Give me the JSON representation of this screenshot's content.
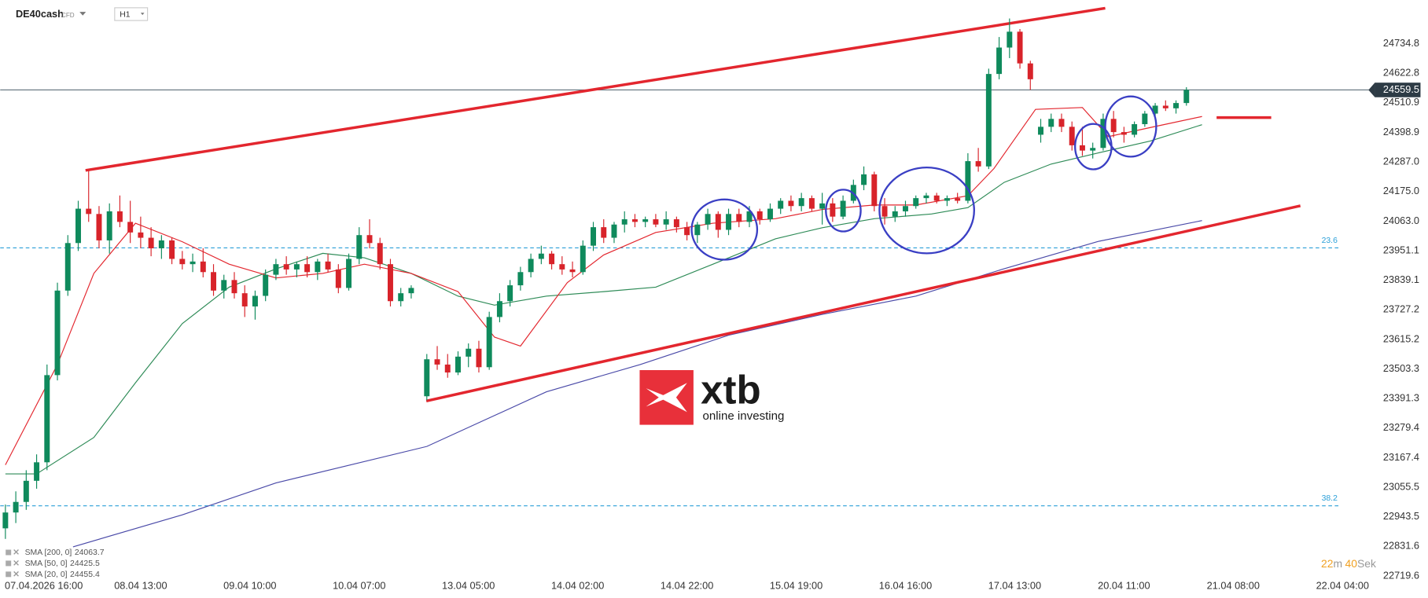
{
  "header": {
    "symbol": "DE40cash",
    "kind": "CFD",
    "timeframe": "H1"
  },
  "logo": {
    "name": "xtb",
    "tagline": "online investing"
  },
  "timer": {
    "minutes": 22,
    "minutes_unit": "m",
    "seconds": 40,
    "seconds_unit": "Sek"
  },
  "chart_data": {
    "type": "candlestick",
    "up_color": "#0f8a5c",
    "down_color": "#d8232a",
    "xlim": [
      -8,
      255
    ],
    "ylim": [
      22657,
      24900
    ],
    "xticks": [
      {
        "value": -2,
        "label": "07.04.2026 16:00"
      },
      {
        "value": 19,
        "label": "08.04 13:00"
      },
      {
        "value": 40,
        "label": "09.04 10:00"
      },
      {
        "value": 61,
        "label": "10.04 07:00"
      },
      {
        "value": 82,
        "label": "13.04 05:00"
      },
      {
        "value": 103,
        "label": "14.04 02:00"
      },
      {
        "value": 124,
        "label": "14.04 22:00"
      },
      {
        "value": 145,
        "label": "15.04 19:00"
      },
      {
        "value": 166,
        "label": "16.04 16:00"
      },
      {
        "value": 187,
        "label": "17.04 13:00"
      },
      {
        "value": 208,
        "label": "20.04 11:00"
      },
      {
        "value": 229,
        "label": "21.04 08:00"
      },
      {
        "value": 250,
        "label": "22.04 04:00"
      }
    ],
    "yticks": [
      24734.8,
      24622.8,
      24510.9,
      24398.9,
      {
        "value": 24287,
        "label": "24287.0"
      },
      {
        "value": 24175,
        "label": "24175.0"
      },
      {
        "value": 24063,
        "label": "24063.0"
      },
      23951.1,
      23839.1,
      23727.2,
      23615.2,
      23503.3,
      23391.3,
      23279.4,
      23167.4,
      23055.5,
      22943.5,
      22831.6,
      22719.6
    ],
    "last_price": 24559.5,
    "levels": [
      {
        "value": 23961.8,
        "label": "23.6"
      },
      {
        "value": 22985.3,
        "label": "38.2"
      }
    ],
    "level_color": "#2a9fd8",
    "trendline_color": "#e3262e",
    "trendlines": [
      {
        "x": [
          8.4,
          204.4
        ],
        "y": [
          24255,
          24869
        ]
      },
      {
        "x": [
          73.9,
          241.9
        ],
        "y": [
          23382,
          24121
        ]
      },
      {
        "x": [
          225.8,
          236.3
        ],
        "y": [
          24455,
          24455
        ]
      }
    ],
    "highlight_color": "#3a3fc4",
    "highlights": [
      {
        "x": [
          124.9,
          137.5
        ],
        "y": [
          23917,
          24145
        ]
      },
      {
        "x": [
          150.7,
          157.4
        ],
        "y": [
          24024,
          24182
        ]
      },
      {
        "x": [
          161,
          179.2
        ],
        "y": [
          23941,
          24266
        ]
      },
      {
        "x": [
          198.6,
          205.6
        ],
        "y": [
          24259,
          24431
        ]
      },
      {
        "x": [
          204.4,
          214.2
        ],
        "y": [
          24307,
          24535
        ]
      }
    ],
    "indicators": [
      {
        "name": "SMA [200, 0]",
        "value": 24063.7,
        "color": "#4a4aa8",
        "x": [
          6,
          27,
          45,
          74,
          97,
          115,
          132,
          150,
          168,
          185,
          203,
          223
        ],
        "values": [
          22830,
          22951,
          23072,
          23210,
          23417,
          23520,
          23631,
          23710,
          23779,
          23883,
          23986,
          24065
        ]
      },
      {
        "name": "SMA [50, 0]",
        "value": 24425.5,
        "color": "#2e8b57",
        "x": [
          -7,
          -1,
          10,
          18,
          27,
          36,
          45,
          54,
          62,
          71,
          80,
          87,
          97,
          108,
          118,
          129,
          141,
          150,
          160,
          171,
          178,
          185,
          194,
          203,
          213,
          223
        ],
        "values": [
          23106,
          23106,
          23244,
          23451,
          23675,
          23813,
          23882,
          23941,
          23924,
          23865,
          23779,
          23745,
          23779,
          23796,
          23813,
          23900,
          23996,
          24038,
          24072,
          24090,
          24114,
          24210,
          24279,
          24321,
          24366,
          24428
        ]
      },
      {
        "name": "SMA [20, 0]",
        "value": 24455.4,
        "color": "#e3262e",
        "x": [
          -7,
          3,
          10,
          18,
          27,
          36,
          45,
          54,
          62,
          71,
          80,
          87,
          92,
          101,
          108,
          118,
          129,
          141,
          150,
          160,
          168,
          178,
          183,
          191,
          200,
          205,
          213,
          223
        ],
        "values": [
          23140,
          23520,
          23865,
          24055,
          23985,
          23900,
          23848,
          23865,
          23900,
          23865,
          23796,
          23624,
          23590,
          23830,
          23935,
          24020,
          24055,
          24072,
          24107,
          24124,
          24124,
          24159,
          24262,
          24486,
          24493,
          24383,
          24417,
          24459
        ]
      }
    ],
    "x": [
      -7,
      -5,
      -3,
      -1,
      1,
      3,
      5,
      7,
      9,
      11,
      13,
      15,
      17,
      19,
      21,
      23,
      25,
      27,
      29,
      31,
      33,
      35,
      37,
      39,
      41,
      43,
      45,
      47,
      49,
      51,
      53,
      55,
      57,
      59,
      61,
      63,
      65,
      67,
      69,
      71,
      74,
      76,
      78,
      80,
      82,
      84,
      86,
      88,
      90,
      92,
      94,
      96,
      98,
      100,
      102,
      104,
      106,
      108,
      110,
      112,
      114,
      116,
      118,
      120,
      122,
      124,
      126,
      128,
      130,
      132,
      134,
      136,
      138,
      140,
      142,
      144,
      146,
      148,
      150,
      152,
      154,
      156,
      158,
      160,
      162,
      164,
      166,
      168,
      170,
      172,
      174,
      176,
      178,
      180,
      182,
      184,
      186,
      188,
      190,
      192,
      194,
      196,
      198,
      200,
      202,
      204,
      206,
      208,
      210,
      212,
      214,
      216,
      218,
      220
    ],
    "open": [
      22900,
      22960,
      23000,
      23080,
      23150,
      23480,
      23800,
      23980,
      24110,
      24090,
      23990,
      24100,
      24060,
      24020,
      24000,
      23960,
      23990,
      23920,
      23900,
      23910,
      23870,
      23800,
      23840,
      23790,
      23740,
      23780,
      23860,
      23900,
      23880,
      23900,
      23870,
      23910,
      23880,
      23810,
      23920,
      24010,
      23980,
      23900,
      23760,
      23790,
      23400,
      23540,
      23520,
      23490,
      23550,
      23580,
      23510,
      23700,
      23760,
      23820,
      23870,
      23920,
      23940,
      23900,
      23880,
      23870,
      23970,
      24040,
      24000,
      24050,
      24070,
      24060,
      24070,
      24050,
      24070,
      24040,
      24010,
      24050,
      24090,
      24030,
      24090,
      24060,
      24100,
      24070,
      24110,
      24140,
      24120,
      24150,
      24110,
      24130,
      24080,
      24140,
      24200,
      24240,
      24120,
      24080,
      24100,
      24120,
      24150,
      24160,
      24140,
      24150,
      24140,
      24290,
      24270,
      24620,
      24720,
      24780,
      24660,
      24390,
      24420,
      24450,
      24420,
      24350,
      24330,
      24340,
      24450,
      24400,
      24390,
      24430,
      24470,
      24500,
      24490,
      24510
    ],
    "high": [
      22990,
      23040,
      23120,
      23180,
      23520,
      23830,
      24010,
      24140,
      24255,
      24120,
      24130,
      24160,
      24140,
      24080,
      24040,
      24010,
      24000,
      23950,
      23940,
      23960,
      23900,
      23860,
      23870,
      23820,
      23800,
      23880,
      23920,
      23930,
      23910,
      23930,
      23920,
      23940,
      23900,
      23940,
      24040,
      24070,
      24000,
      23920,
      23810,
      23820,
      23560,
      23590,
      23560,
      23570,
      23600,
      23610,
      23720,
      23790,
      23840,
      23890,
      23940,
      23970,
      23950,
      23930,
      23910,
      23990,
      24060,
      24070,
      24060,
      24100,
      24090,
      24080,
      24090,
      24100,
      24080,
      24060,
      24060,
      24110,
      24100,
      24110,
      24110,
      24120,
      24110,
      24130,
      24150,
      24160,
      24170,
      24160,
      24170,
      24150,
      24160,
      24220,
      24270,
      24250,
      24150,
      24120,
      24140,
      24160,
      24170,
      24170,
      24160,
      24170,
      24320,
      24340,
      24640,
      24760,
      24830,
      24790,
      24670,
      24450,
      24470,
      24470,
      24440,
      24420,
      24360,
      24470,
      24480,
      24420,
      24440,
      24480,
      24510,
      24520,
      24520,
      24570
    ],
    "low": [
      22860,
      22920,
      22970,
      23050,
      23120,
      23460,
      23780,
      23950,
      24060,
      23960,
      23940,
      24040,
      23980,
      23960,
      23930,
      23920,
      23900,
      23880,
      23870,
      23850,
      23780,
      23770,
      23770,
      23700,
      23690,
      23760,
      23840,
      23860,
      23850,
      23850,
      23840,
      23870,
      23790,
      23800,
      23900,
      23960,
      23880,
      23740,
      23740,
      23770,
      23385,
      23500,
      23470,
      23480,
      23510,
      23490,
      23500,
      23680,
      23740,
      23800,
      23850,
      23900,
      23880,
      23860,
      23850,
      23860,
      23950,
      23980,
      23980,
      24020,
      24040,
      24040,
      24040,
      24030,
      24020,
      23990,
      23980,
      24030,
      24000,
      24010,
      24040,
      24040,
      24050,
      24060,
      24090,
      24100,
      24100,
      24100,
      24050,
      24060,
      24070,
      24130,
      24180,
      24100,
      24050,
      24060,
      24080,
      24110,
      24130,
      24130,
      24120,
      24130,
      24130,
      24250,
      24260,
      24600,
      24680,
      24640,
      24560,
      24360,
      24400,
      24400,
      24330,
      24310,
      24300,
      24330,
      24380,
      24360,
      24380,
      24420,
      24460,
      24480,
      24470,
      24500
    ],
    "close": [
      22960,
      23000,
      23080,
      23150,
      23480,
      23800,
      23980,
      24110,
      24090,
      23990,
      24100,
      24060,
      24020,
      24000,
      23960,
      23990,
      23920,
      23900,
      23910,
      23870,
      23800,
      23840,
      23790,
      23740,
      23780,
      23860,
      23900,
      23880,
      23900,
      23870,
      23910,
      23880,
      23810,
      23920,
      24010,
      23980,
      23900,
      23760,
      23790,
      23810,
      23540,
      23520,
      23490,
      23550,
      23580,
      23510,
      23700,
      23760,
      23820,
      23870,
      23920,
      23940,
      23900,
      23880,
      23870,
      23970,
      24040,
      24000,
      24050,
      24070,
      24060,
      24070,
      24050,
      24070,
      24040,
      24010,
      24050,
      24090,
      24030,
      24090,
      24060,
      24100,
      24070,
      24110,
      24140,
      24120,
      24150,
      24110,
      24130,
      24080,
      24140,
      24200,
      24240,
      24120,
      24080,
      24100,
      24120,
      24150,
      24160,
      24140,
      24150,
      24140,
      24290,
      24270,
      24620,
      24720,
      24780,
      24660,
      24600,
      24420,
      24450,
      24420,
      24350,
      24330,
      24340,
      24450,
      24400,
      24390,
      24430,
      24470,
      24500,
      24490,
      24510,
      24560
    ]
  }
}
